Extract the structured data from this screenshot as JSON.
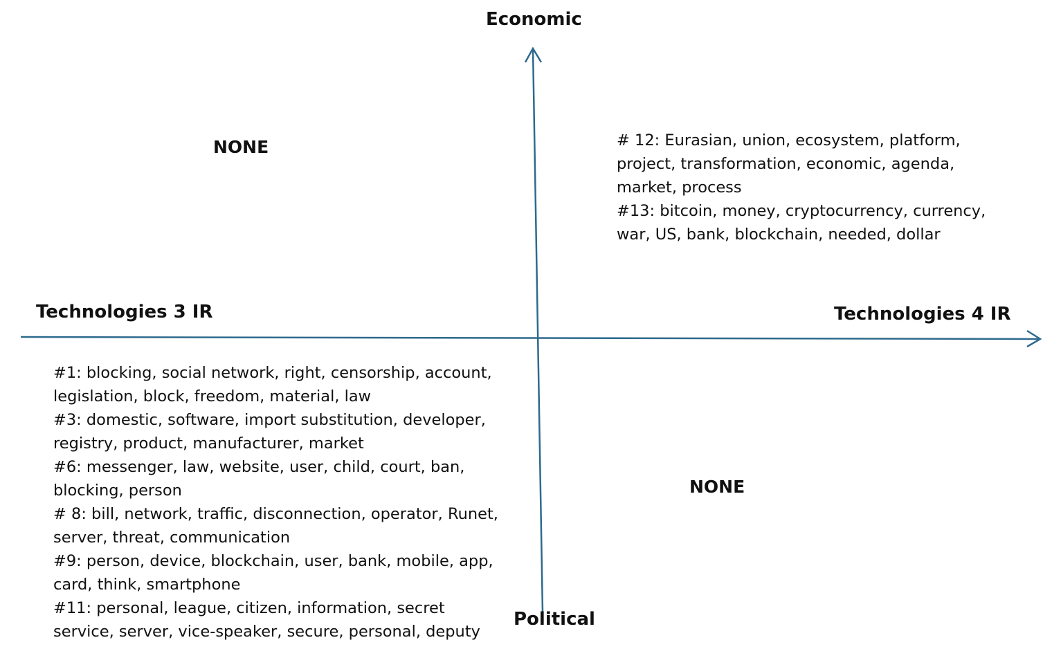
{
  "axes": {
    "top": "Economic",
    "bottom": "Political",
    "left": "Technologies 3 IR",
    "right": "Technologies 4 IR",
    "color": "#2e6a8e"
  },
  "quadrants": {
    "top_left": {
      "text": "NONE"
    },
    "top_right": {
      "lines": [
        "# 12: Eurasian, union, ecosystem, platform,",
        "project, transformation, economic, agenda,",
        "market, process",
        "#13: bitcoin, money, cryptocurrency, currency,",
        "war, US, bank, blockchain, needed, dollar"
      ]
    },
    "bottom_left": {
      "lines": [
        "#1: blocking, social network, right, censorship, account,",
        "legislation, block, freedom, material, law",
        "#3: domestic, software, import substitution, developer,",
        "registry, product, manufacturer, market",
        "#6: messenger, law, website, user, child, court, ban,",
        "blocking, person",
        "# 8: bill, network, traffic, disconnection, operator, Runet,",
        "server, threat, communication",
        "#9: person, device, blockchain, user, bank, mobile, app,",
        "card, think, smartphone",
        "#11: personal, league, citizen, information, secret",
        "service, server, vice-speaker, secure, personal, deputy"
      ]
    },
    "bottom_right": {
      "text": "NONE"
    }
  }
}
